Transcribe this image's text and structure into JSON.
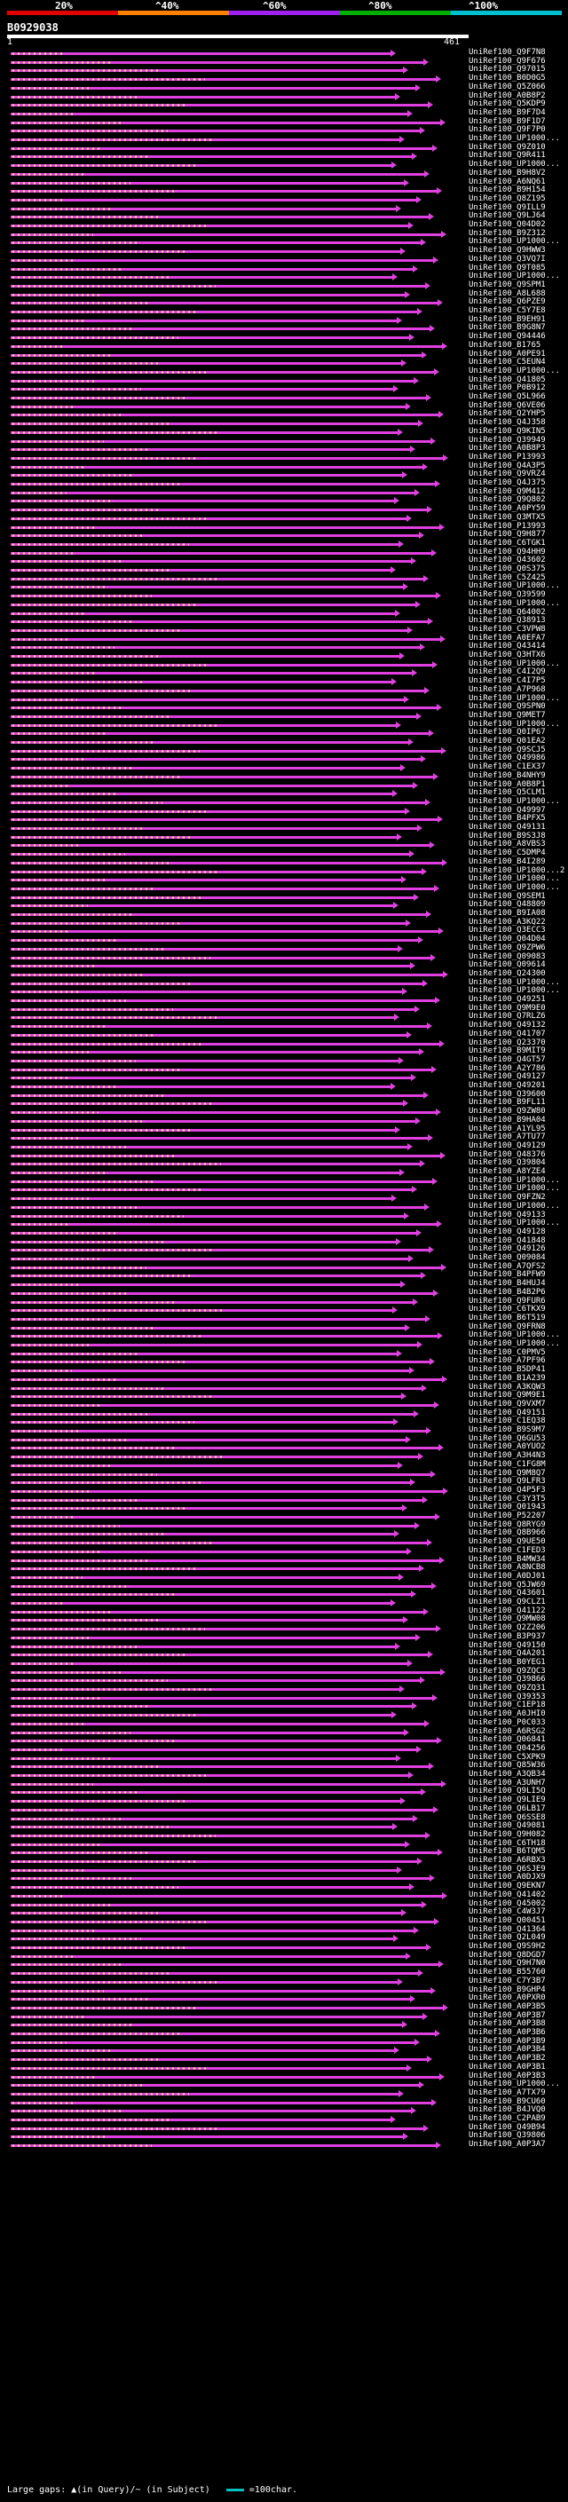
{
  "scale": {
    "labels": [
      "20%",
      "^40%",
      "^60%",
      "^80%",
      "^100%"
    ],
    "colors": [
      "#e00000",
      "#ff8000",
      "#a020f0",
      "#00b000",
      "#00c0d0"
    ]
  },
  "query": {
    "id": "B0929038",
    "start": "1",
    "end": "461"
  },
  "hits": [
    "UniRef100_Q9F7N8",
    "UniRef100_Q9F676",
    "UniRef100_Q97015",
    "UniRef100_B0D0G5",
    "UniRef100_Q5Z066",
    "UniRef100_A0B8P2",
    "UniRef100_Q5KDP9",
    "UniRef100_B9F7D4",
    "UniRef100_B9F1D7",
    "UniRef100_Q9F7P0",
    "UniRef100_UP1000...",
    "UniRef100_Q9Z010",
    "UniRef100_Q9R411",
    "UniRef100_UP1000...",
    "UniRef100_B9H8V2",
    "UniRef100_A6NQ61",
    "UniRef100_B9H154",
    "UniRef100_Q8Z195",
    "UniRef100_Q9ILL9",
    "UniRef100_Q9LJ64",
    "UniRef100_Q04D02",
    "UniRef100_B9Z312",
    "UniRef100_UP1000...",
    "UniRef100_Q9HWW3",
    "UniRef100_Q3VQ7I",
    "UniRef100_Q9T085",
    "UniRef100_UP1000...",
    "UniRef100_Q9SPM1",
    "UniRef100_A8L688",
    "UniRef100_Q6PZE9",
    "UniRef100_C5Y7E8",
    "UniRef100_B9EH91",
    "UniRef100_B9G8N7",
    "UniRef100_Q94446",
    "UniRef100_B1765",
    "UniRef100_A0PE91",
    "UniRef100_C5EUN4",
    "UniRef100_UP1000...",
    "UniRef100_Q41805",
    "UniRef100_P0B912",
    "UniRef100_Q5L966",
    "UniRef100_Q6VE06",
    "UniRef100_Q2YHP5",
    "UniRef100_Q4J358",
    "UniRef100_Q9KIN5",
    "UniRef100_Q39949",
    "UniRef100_A0B8P3",
    "UniRef100_P13993",
    "UniRef100_Q4A3P5",
    "UniRef100_Q9VRZ4",
    "UniRef100_Q4J375",
    "UniRef100_Q9M412",
    "UniRef100_Q9Q802",
    "UniRef100_A0PY59",
    "UniRef100_Q3MTX5",
    "UniRef100_P13993",
    "UniRef100_Q9H877",
    "UniRef100_C6TGK1",
    "UniRef100_Q94HH9",
    "UniRef100_Q43602",
    "UniRef100_Q0S375",
    "UniRef100_C5Z425",
    "UniRef100_UP1000...",
    "UniRef100_Q39599",
    "UniRef100_UP1000...",
    "UniRef100_Q64002",
    "UniRef100_Q38913",
    "UniRef100_C3VPW8",
    "UniRef100_A0EFA7",
    "UniRef100_Q43414",
    "UniRef100_Q3HTX6",
    "UniRef100_UP1000...",
    "UniRef100_C4I2Q9",
    "UniRef100_C4I7P5",
    "UniRef100_A7P968",
    "UniRef100_UP1000...",
    "UniRef100_Q9SPN0",
    "UniRef100_Q9MET7",
    "UniRef100_UP1000...",
    "UniRef100_Q0IP67",
    "UniRef100_Q01EA2",
    "UniRef100_Q9SCJ5",
    "UniRef100_Q49986",
    "UniRef100_C1EX37",
    "UniRef100_B4NHY9",
    "UniRef100_A0B8P1",
    "UniRef100_Q5CLM1",
    "UniRef100_UP1000...",
    "UniRef100_Q49997",
    "UniRef100_B4PFX5",
    "UniRef100_Q49131",
    "UniRef100_B9S3J8",
    "UniRef100_A8VBS3",
    "UniRef100_C5DMP4",
    "UniRef100_B4I289",
    "UniRef100_UP1000...2",
    "UniRef100_UP1000...",
    "UniRef100_UP1000...",
    "UniRef100_Q9SEM1",
    "UniRef100_Q48809",
    "UniRef100_B9IA08",
    "UniRef100_A3KQ22",
    "UniRef100_Q3ECC3",
    "UniRef100_Q04D04",
    "UniRef100_Q9ZPW6",
    "UniRef100_Q09083",
    "UniRef100_Q09614",
    "UniRef100_Q24300",
    "UniRef100_UP1000...",
    "UniRef100_UP1000...",
    "UniRef100_Q49251",
    "UniRef100_Q9M9E0",
    "UniRef100_Q7RLZ6",
    "UniRef100_Q49132",
    "UniRef100_Q41707",
    "UniRef100_Q23370",
    "UniRef100_B9MIT9",
    "UniRef100_Q4GT57",
    "UniRef100_A2Y786",
    "UniRef100_Q49127",
    "UniRef100_Q49201",
    "UniRef100_Q39600",
    "UniRef100_B9FL11",
    "UniRef100_Q9ZW80",
    "UniRef100_B9HA04",
    "UniRef100_A1YL95",
    "UniRef100_A7TU77",
    "UniRef100_Q49129",
    "UniRef100_Q48376",
    "UniRef100_Q39804",
    "UniRef100_A8YZE4",
    "UniRef100_UP1000...",
    "UniRef100_UP1000...",
    "UniRef100_Q9FZN2",
    "UniRef100_UP1000...",
    "UniRef100_Q49133",
    "UniRef100_UP1000...",
    "UniRef100_Q49128",
    "UniRef100_Q41848",
    "UniRef100_Q49126",
    "UniRef100_Q09084",
    "UniRef100_A7QFS2",
    "UniRef100_B4PFW9",
    "UniRef100_B4HUJ4",
    "UniRef100_B4B2P6",
    "UniRef100_Q9FUR6",
    "UniRef100_C6TKX9",
    "UniRef100_B6T519",
    "UniRef100_Q9FRN8",
    "UniRef100_UP1000...",
    "UniRef100_UP1000...",
    "UniRef100_C0PMV5",
    "UniRef100_A7PF96",
    "UniRef100_B5DP41",
    "UniRef100_B1A239",
    "UniRef100_A3KQW3",
    "UniRef100_Q9M9E1",
    "UniRef100_Q9VXM7",
    "UniRef100_Q49151",
    "UniRef100_C1EQ38",
    "UniRef100_B9S9M7",
    "UniRef100_Q6GU53",
    "UniRef100_A0YUO2",
    "UniRef100_A3H4N3",
    "UniRef100_C1FG8M",
    "UniRef100_Q9M8Q7",
    "UniRef100_Q9LFR3",
    "UniRef100_Q4P5F3",
    "UniRef100_C3Y3T5",
    "UniRef100_Q01943",
    "UniRef100_P52207",
    "UniRef100_Q8RYG9",
    "UniRef100_Q8B966",
    "UniRef100_Q9UE50",
    "UniRef100_C1FED3",
    "UniRef100_B4MW34",
    "UniRef100_A8NCB8",
    "UniRef100_A0DJ01",
    "UniRef100_Q5JW69",
    "UniRef100_Q43601",
    "UniRef100_Q9CLZ1",
    "UniRef100_Q41122",
    "UniRef100_Q9MW08",
    "UniRef100_Q2Z206",
    "UniRef100_B3P937",
    "UniRef100_Q49150",
    "UniRef100_Q4A201",
    "UniRef100_B0YEG1",
    "UniRef100_Q9ZQC3",
    "UniRef100_Q39866",
    "UniRef100_Q9ZQ31",
    "UniRef100_Q39353",
    "UniRef100_C1EP18",
    "UniRef100_A0JHI0",
    "UniRef100_P0C033",
    "UniRef100_A6RSG2",
    "UniRef100_Q06841",
    "UniRef100_Q04256",
    "UniRef100_C5XPK9",
    "UniRef100_Q85W36",
    "UniRef100_A3QB34",
    "UniRef100_A3UNH7",
    "UniRef100_Q9LI5Q",
    "UniRef100_Q9LIE9",
    "UniRef100_Q6LB17",
    "UniRef100_Q6SSE8",
    "UniRef100_Q49081",
    "UniRef100_Q9H082",
    "UniRef100_C6TH18",
    "UniRef100_B6TQM5",
    "UniRef100_A6RBX3",
    "UniRef100_Q6SJE9",
    "UniRef100_A0DJX9",
    "UniRef100_Q9EKN7",
    "UniRef100_Q41402",
    "UniRef100_Q45002",
    "UniRef100_C4W3J7",
    "UniRef100_Q00451",
    "UniRef100_Q41364",
    "UniRef100_Q2L049",
    "UniRef100_Q9S9H2",
    "UniRef100_Q8DGD7",
    "UniRef100_Q9H7N0",
    "UniRef100_B55760",
    "UniRef100_C7Y3B7",
    "UniRef100_B9GHP4",
    "UniRef100_A0PXR0",
    "UniRef100_A0P3B5",
    "UniRef100_A0P3B7",
    "UniRef100_A0P3B8",
    "UniRef100_A0P3B6",
    "UniRef100_A0P3B9",
    "UniRef100_A0P3B4",
    "UniRef100_A0P3B2",
    "UniRef100_A0P3B1",
    "UniRef100_A0P3B3",
    "UniRef100_UP1000...",
    "UniRef100_A7TX79",
    "UniRef100_B9CU60",
    "UniRef100_B4JVQ0",
    "UniRef100_C2PAB9",
    "UniRef100_Q49B94",
    "UniRef100_Q39806",
    "UniRef100_A0P3A7"
  ],
  "legend": {
    "label": "Large gaps: ▲(in Query)/~ (in Subject)",
    "scale_label": "=100char."
  }
}
